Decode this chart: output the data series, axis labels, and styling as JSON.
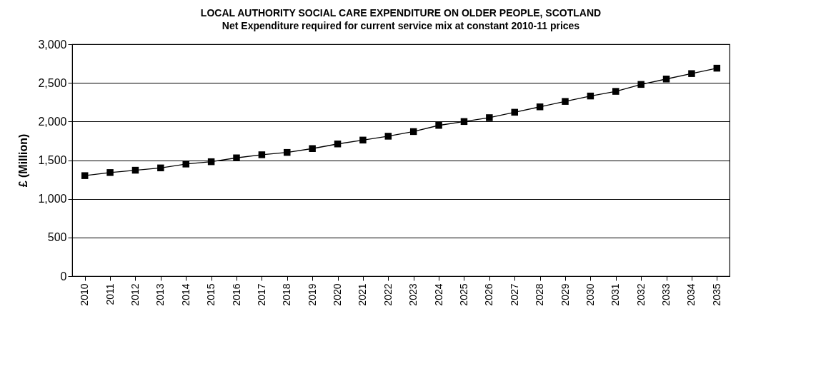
{
  "chart_data": {
    "type": "line",
    "title": "LOCAL AUTHORITY SOCIAL CARE EXPENDITURE ON OLDER PEOPLE, SCOTLAND",
    "subtitle": "Net Expenditure required for current service mix at constant 2010-11 prices",
    "ylabel": "£ (Million)",
    "categories": [
      "2010",
      "2011",
      "2012",
      "2013",
      "2014",
      "2015",
      "2016",
      "2017",
      "2018",
      "2019",
      "2020",
      "2021",
      "2022",
      "2023",
      "2024",
      "2025",
      "2026",
      "2027",
      "2028",
      "2029",
      "2030",
      "2031",
      "2032",
      "2033",
      "2034",
      "2035"
    ],
    "series": [
      {
        "color": "#000000",
        "values": [
          1300,
          1340,
          1370,
          1400,
          1450,
          1480,
          1530,
          1570,
          1600,
          1650,
          1710,
          1760,
          1810,
          1870,
          1950,
          2000,
          2050,
          2120,
          2190,
          2260,
          2330,
          2390,
          2480,
          2550,
          2620,
          2690
        ]
      }
    ],
    "ylim": [
      0,
      3000
    ],
    "yticks": [
      {
        "value": 0,
        "label": "0"
      },
      {
        "value": 500,
        "label": "500"
      },
      {
        "value": 1000,
        "label": "1,000"
      },
      {
        "value": 1500,
        "label": "1,500"
      },
      {
        "value": 2000,
        "label": "2,000"
      },
      {
        "value": 2500,
        "label": "2,500"
      },
      {
        "value": 3000,
        "label": "3,000"
      }
    ],
    "grid": "y",
    "marker": "square",
    "line_style": "solid"
  }
}
